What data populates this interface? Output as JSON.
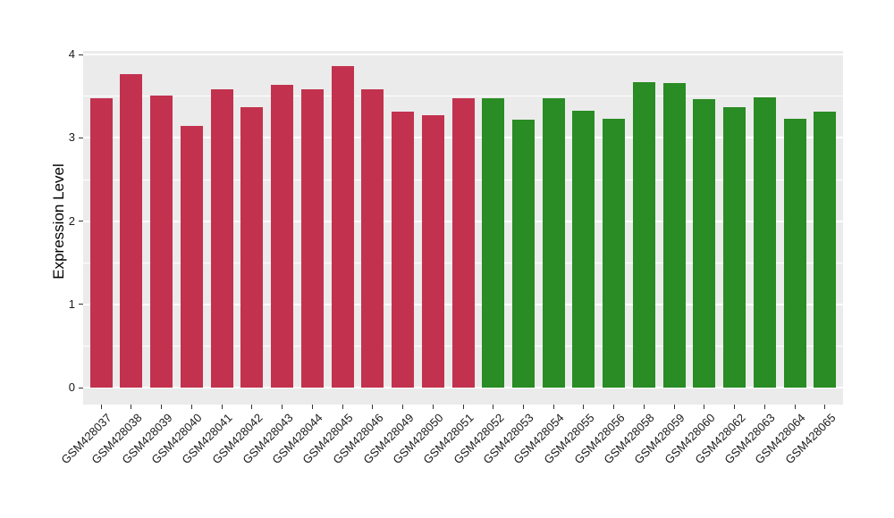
{
  "chart_data": {
    "type": "bar",
    "title": "",
    "xlabel": "",
    "ylabel": "Expression Level",
    "ylim": [
      0,
      4
    ],
    "yticks": [
      0,
      1,
      2,
      3,
      4
    ],
    "minor_yticks": [
      0.5,
      1.5,
      2.5,
      3.5
    ],
    "x_tick_angle": 45,
    "grid": "white major/minor gridlines on gray panel",
    "legend_position": "none",
    "group_colors": {
      "red": "#C2324E",
      "green": "#298C24"
    },
    "bars": [
      {
        "label": "GSM428037",
        "value": 3.48,
        "group": "red"
      },
      {
        "label": "GSM428038",
        "value": 3.77,
        "group": "red"
      },
      {
        "label": "GSM428039",
        "value": 3.51,
        "group": "red"
      },
      {
        "label": "GSM428040",
        "value": 3.14,
        "group": "red"
      },
      {
        "label": "GSM428041",
        "value": 3.58,
        "group": "red"
      },
      {
        "label": "GSM428042",
        "value": 3.37,
        "group": "red"
      },
      {
        "label": "GSM428043",
        "value": 3.64,
        "group": "red"
      },
      {
        "label": "GSM428044",
        "value": 3.58,
        "group": "red"
      },
      {
        "label": "GSM428045",
        "value": 3.86,
        "group": "red"
      },
      {
        "label": "GSM428046",
        "value": 3.58,
        "group": "red"
      },
      {
        "label": "GSM428049",
        "value": 3.32,
        "group": "red"
      },
      {
        "label": "GSM428050",
        "value": 3.27,
        "group": "red"
      },
      {
        "label": "GSM428051",
        "value": 3.48,
        "group": "red"
      },
      {
        "label": "GSM428052",
        "value": 3.48,
        "group": "green"
      },
      {
        "label": "GSM428053",
        "value": 3.22,
        "group": "green"
      },
      {
        "label": "GSM428054",
        "value": 3.48,
        "group": "green"
      },
      {
        "label": "GSM428055",
        "value": 3.33,
        "group": "green"
      },
      {
        "label": "GSM428056",
        "value": 3.23,
        "group": "green"
      },
      {
        "label": "GSM428058",
        "value": 3.67,
        "group": "green"
      },
      {
        "label": "GSM428059",
        "value": 3.66,
        "group": "green"
      },
      {
        "label": "GSM428060",
        "value": 3.47,
        "group": "green"
      },
      {
        "label": "GSM428062",
        "value": 3.37,
        "group": "green"
      },
      {
        "label": "GSM428063",
        "value": 3.49,
        "group": "green"
      },
      {
        "label": "GSM428064",
        "value": 3.23,
        "group": "green"
      },
      {
        "label": "GSM428065",
        "value": 3.32,
        "group": "green"
      }
    ]
  },
  "colors": {
    "panel_bg": "#EBEBEB",
    "grid": "#FFFFFF",
    "axis_text": "#1A1A1A",
    "tick_mark": "#333333",
    "page_bg": "#FFFFFF"
  }
}
